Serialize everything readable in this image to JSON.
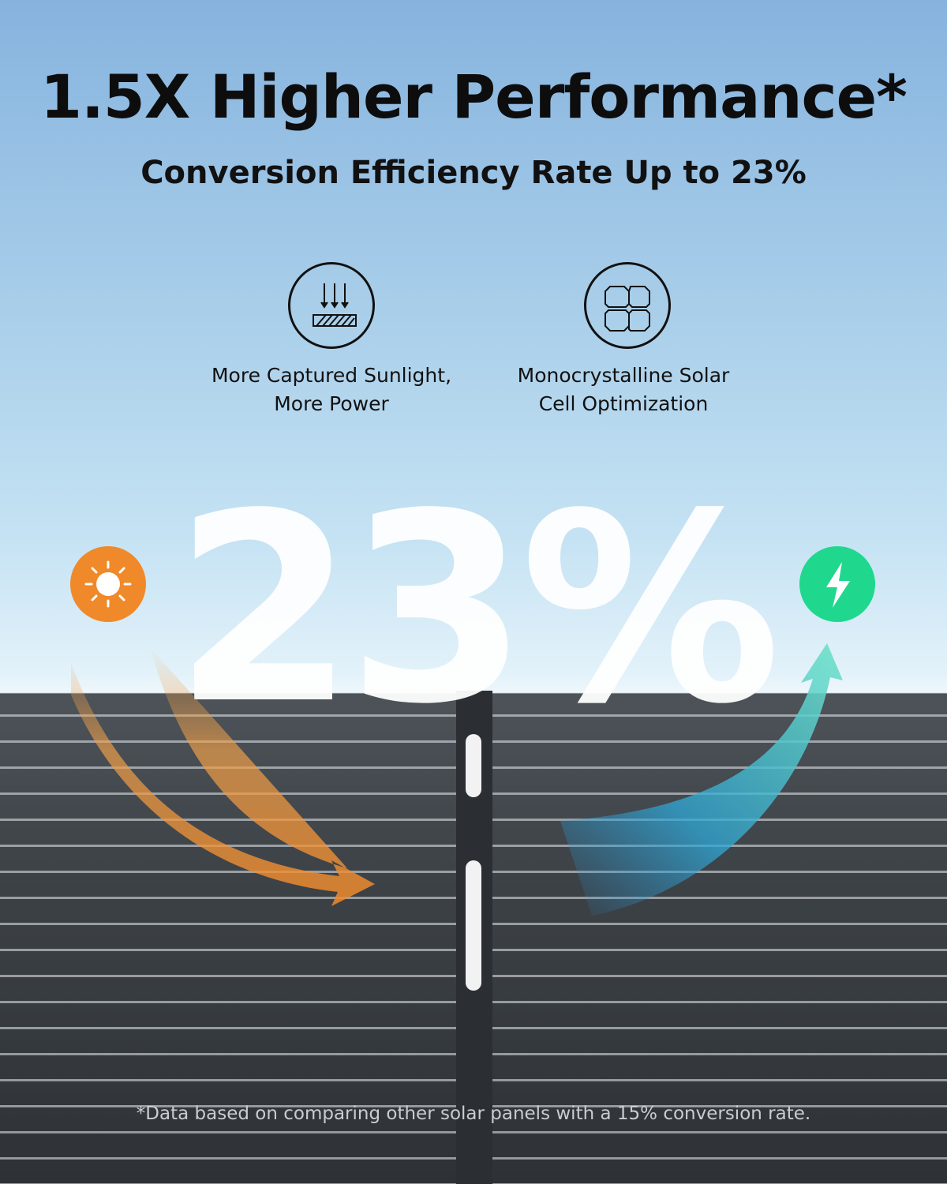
{
  "header": {
    "title": "1.5X Higher Performance*",
    "subtitle": "Conversion Efficiency Rate Up to 23%"
  },
  "features": [
    {
      "icon": "sunlight-arrows-icon",
      "line1": "More Captured Sunlight,",
      "line2": "More Power"
    },
    {
      "icon": "monocrystalline-cell-icon",
      "line1": "Monocrystalline Solar",
      "line2": "Cell Optimization"
    }
  ],
  "highlight": "23%",
  "icons": {
    "left": "sun-icon",
    "right": "lightning-bolt-icon"
  },
  "colors": {
    "sun": "#f0892a",
    "bolt": "#1fd88e",
    "arrow_in": "#f0a04a",
    "arrow_out": "#3cc4c8"
  },
  "footnote": "*Data based on comparing other solar panels with a 15% conversion rate."
}
